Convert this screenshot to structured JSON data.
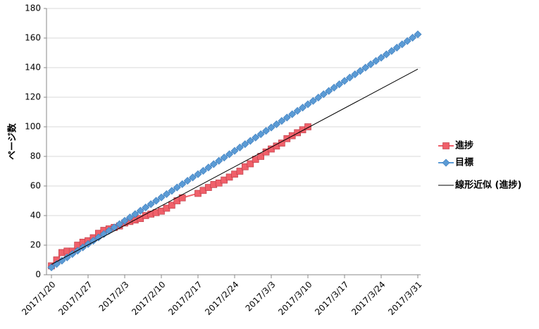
{
  "chart_data": {
    "type": "line",
    "ylabel": "ページ数",
    "ylim": [
      0,
      180
    ],
    "yticks": [
      0,
      20,
      40,
      60,
      80,
      100,
      120,
      140,
      160,
      180
    ],
    "grid": true,
    "xlim": [
      "2017/1/20",
      "2017/3/31"
    ],
    "xticks": [
      "2017/1/20",
      "2017/1/27",
      "2017/2/3",
      "2017/2/10",
      "2017/2/17",
      "2017/2/24",
      "2017/3/3",
      "2017/3/10",
      "2017/3/17",
      "2017/3/24",
      "2017/3/31"
    ],
    "legend": "right",
    "series": [
      {
        "name": "進捗",
        "color": "#f0606a",
        "marker": "square",
        "x": [
          "2017/1/20",
          "2017/1/21",
          "2017/1/22",
          "2017/1/23",
          "2017/1/24",
          "2017/1/25",
          "2017/1/26",
          "2017/1/27",
          "2017/1/28",
          "2017/1/29",
          "2017/1/30",
          "2017/1/31",
          "2017/2/1",
          "2017/2/2",
          "2017/2/3",
          "2017/2/4",
          "2017/2/5",
          "2017/2/6",
          "2017/2/7",
          "2017/2/8",
          "2017/2/9",
          "2017/2/10",
          "2017/2/11",
          "2017/2/12",
          "2017/2/13",
          "2017/2/14",
          "2017/2/17",
          "2017/2/18",
          "2017/2/19",
          "2017/2/20",
          "2017/2/21",
          "2017/2/22",
          "2017/2/23",
          "2017/2/24",
          "2017/2/25",
          "2017/2/26",
          "2017/2/27",
          "2017/2/28",
          "2017/3/1",
          "2017/3/2",
          "2017/3/3",
          "2017/3/4",
          "2017/3/5",
          "2017/3/6",
          "2017/3/7",
          "2017/3/8",
          "2017/3/9",
          "2017/3/10"
        ],
        "values": [
          6,
          10,
          15,
          16,
          16,
          20,
          22,
          23,
          25,
          28,
          30,
          31,
          32,
          33,
          35,
          36,
          37,
          38,
          40,
          41,
          42,
          43,
          45,
          47,
          50,
          52,
          55,
          57,
          59,
          61,
          62,
          64,
          66,
          68,
          70,
          73,
          75,
          78,
          80,
          83,
          85,
          87,
          89,
          92,
          94,
          96,
          98,
          100
        ]
      },
      {
        "name": "目標",
        "color": "#5b9bd5",
        "marker": "diamond",
        "x": [
          "2017/1/20",
          "2017/1/21",
          "2017/1/22",
          "2017/1/23",
          "2017/1/24",
          "2017/1/25",
          "2017/1/26",
          "2017/1/27",
          "2017/1/28",
          "2017/1/29",
          "2017/1/30",
          "2017/1/31",
          "2017/2/1",
          "2017/2/2",
          "2017/2/3",
          "2017/2/4",
          "2017/2/5",
          "2017/2/6",
          "2017/2/7",
          "2017/2/8",
          "2017/2/9",
          "2017/2/10",
          "2017/2/11",
          "2017/2/12",
          "2017/2/13",
          "2017/2/14",
          "2017/2/15",
          "2017/2/16",
          "2017/2/17",
          "2017/2/18",
          "2017/2/19",
          "2017/2/20",
          "2017/2/21",
          "2017/2/22",
          "2017/2/23",
          "2017/2/24",
          "2017/2/25",
          "2017/2/26",
          "2017/2/27",
          "2017/2/28",
          "2017/3/1",
          "2017/3/2",
          "2017/3/3",
          "2017/3/4",
          "2017/3/5",
          "2017/3/6",
          "2017/3/7",
          "2017/3/8",
          "2017/3/9",
          "2017/3/10",
          "2017/3/11",
          "2017/3/12",
          "2017/3/13",
          "2017/3/14",
          "2017/3/15",
          "2017/3/16",
          "2017/3/17",
          "2017/3/18",
          "2017/3/19",
          "2017/3/20",
          "2017/3/21",
          "2017/3/22",
          "2017/3/23",
          "2017/3/24",
          "2017/3/25",
          "2017/3/26",
          "2017/3/27",
          "2017/3/28",
          "2017/3/29",
          "2017/3/30",
          "2017/3/31"
        ],
        "values": [
          5,
          7.25,
          9.5,
          11.75,
          14,
          16.25,
          18.5,
          20.75,
          23,
          25.25,
          27.5,
          29.75,
          32,
          34.25,
          36.5,
          38.75,
          41,
          43.25,
          45.5,
          47.75,
          50,
          52.25,
          54.5,
          56.75,
          59,
          61.25,
          63.5,
          65.75,
          68,
          70.25,
          72.5,
          74.75,
          77,
          79.25,
          81.5,
          83.75,
          86,
          88.25,
          90.5,
          92.75,
          95,
          97.25,
          99.5,
          101.75,
          104,
          106.25,
          108.5,
          110.75,
          113,
          115.25,
          117.5,
          119.75,
          122,
          124.25,
          126.5,
          128.75,
          131,
          133.25,
          135.5,
          137.75,
          140,
          142.25,
          144.5,
          146.75,
          149,
          151.25,
          153.5,
          155.75,
          158,
          160.25,
          162.5
        ]
      },
      {
        "name": "線形近似 (進捗)",
        "color": "#000000",
        "marker": "none",
        "x": [
          "2017/1/20",
          "2017/3/31"
        ],
        "values": [
          7,
          139
        ]
      }
    ]
  }
}
